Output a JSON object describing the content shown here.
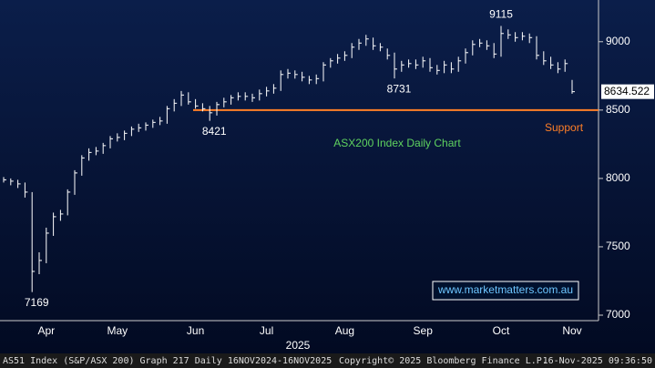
{
  "chart_data": {
    "type": "hlc",
    "title": "ASX200 Index Daily Chart",
    "color": "#ffffff",
    "categories": [
      null,
      null,
      null,
      null,
      null,
      null,
      "Apr",
      null,
      null,
      null,
      null,
      null,
      null,
      null,
      null,
      null,
      "May",
      null,
      null,
      null,
      null,
      null,
      null,
      null,
      null,
      null,
      null,
      "Jun",
      null,
      null,
      null,
      null,
      null,
      null,
      null,
      null,
      null,
      "Jul",
      null,
      null,
      null,
      null,
      null,
      null,
      null,
      null,
      null,
      null,
      "Aug",
      null,
      null,
      null,
      null,
      null,
      null,
      null,
      null,
      null,
      null,
      "Sep",
      null,
      null,
      null,
      null,
      null,
      null,
      null,
      null,
      null,
      null,
      "Oct",
      null,
      null,
      null,
      null,
      null,
      null,
      null,
      null,
      null,
      "Nov"
    ],
    "high": [
      8010,
      8000,
      7990,
      7970,
      7900,
      7460,
      7640,
      7750,
      7770,
      7920,
      8060,
      8170,
      8220,
      8230,
      8260,
      8310,
      8330,
      8350,
      8380,
      8400,
      8410,
      8430,
      8450,
      8530,
      8580,
      8640,
      8630,
      8580,
      8550,
      8530,
      8560,
      8590,
      8610,
      8630,
      8630,
      8620,
      8650,
      8670,
      8690,
      8790,
      8800,
      8790,
      8780,
      8750,
      8760,
      8850,
      8880,
      8910,
      8930,
      8990,
      9020,
      9050,
      9030,
      8990,
      8950,
      8920,
      8860,
      8870,
      8870,
      8890,
      8880,
      8830,
      8860,
      8850,
      8890,
      8950,
      9010,
      9020,
      9010,
      8990,
      9115,
      9090,
      9070,
      9070,
      9060,
      9040,
      8930,
      8890,
      8850,
      8870,
      8720
    ],
    "low": [
      7970,
      7950,
      7930,
      7860,
      7169,
      7300,
      7380,
      7580,
      7690,
      7730,
      7880,
      8020,
      8130,
      8170,
      8180,
      8220,
      8270,
      8280,
      8310,
      8340,
      8350,
      8370,
      8390,
      8400,
      8490,
      8530,
      8540,
      8510,
      8490,
      8421,
      8460,
      8520,
      8540,
      8570,
      8570,
      8560,
      8570,
      8600,
      8620,
      8640,
      8730,
      8730,
      8710,
      8690,
      8690,
      8710,
      8810,
      8840,
      8860,
      8880,
      8940,
      8970,
      8940,
      8930,
      8870,
      8731,
      8780,
      8810,
      8800,
      8810,
      8780,
      8760,
      8770,
      8770,
      8780,
      8840,
      8900,
      8960,
      8940,
      8880,
      8890,
      9020,
      9000,
      9010,
      8990,
      8870,
      8830,
      8800,
      8770,
      8780,
      8620
    ],
    "close": [
      7990,
      7980,
      7960,
      7900,
      7320,
      7400,
      7600,
      7720,
      7740,
      7900,
      8040,
      8150,
      8190,
      8200,
      8240,
      8290,
      8300,
      8330,
      8360,
      8370,
      8390,
      8410,
      8420,
      8510,
      8550,
      8610,
      8560,
      8530,
      8510,
      8480,
      8540,
      8560,
      8590,
      8600,
      8600,
      8590,
      8620,
      8640,
      8660,
      8760,
      8770,
      8760,
      8740,
      8720,
      8730,
      8830,
      8860,
      8880,
      8900,
      8960,
      8990,
      9020,
      8970,
      8960,
      8900,
      8800,
      8830,
      8840,
      8830,
      8860,
      8810,
      8790,
      8830,
      8800,
      8860,
      8920,
      8980,
      8990,
      8970,
      8910,
      9060,
      9050,
      9030,
      9040,
      9030,
      8900,
      8860,
      8830,
      8800,
      8840,
      8634.522
    ],
    "annotations_low": [
      7169,
      8421,
      8731
    ],
    "annotations_high": [
      9115
    ],
    "support": {
      "label": "Support",
      "value": 8500,
      "color": "#ff7f27"
    },
    "year_label": "2025",
    "watermark": "www.marketmatters.com.au",
    "ylim": [
      6960,
      9305
    ],
    "yticks": [
      7000,
      7500,
      8000,
      8500,
      9000
    ],
    "footer": [
      "AS51 Index (S&P/ASX 200) Graph 217 Daily 16NOV2024-16NOV2025",
      "Copyright© 2025 Bloomberg Finance L.P.",
      "16-Nov-2025 09:36:50"
    ]
  }
}
